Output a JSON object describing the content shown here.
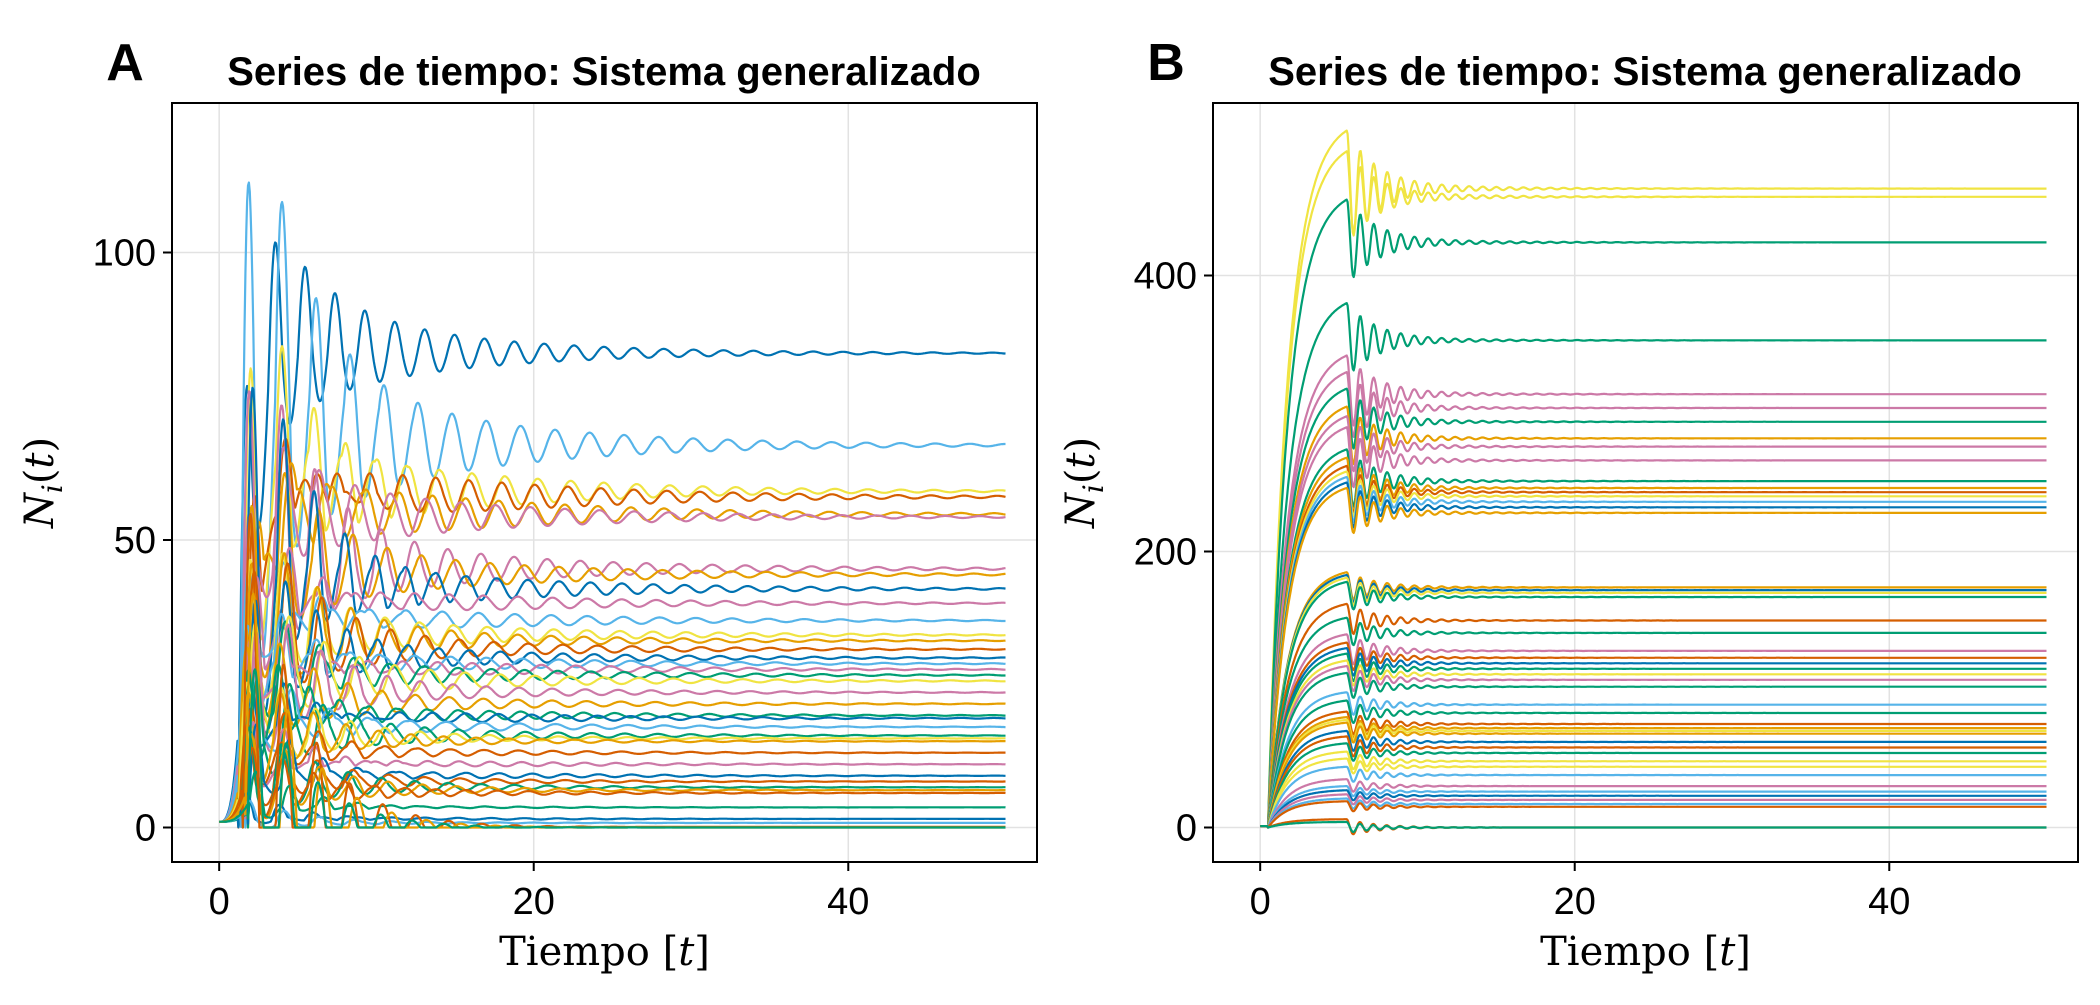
{
  "palette": [
    "#0072b2",
    "#56b4e9",
    "#e69f00",
    "#d55e00",
    "#cc79a7",
    "#009e73",
    "#f0e442"
  ],
  "chart_data": [
    {
      "type": "line",
      "panel_letter": "A",
      "title": "Series de tiempo: Sistema generalizado",
      "xlabel": "Tiempo [t]",
      "ylabel": "N_i(t)",
      "xlim": [
        -3,
        52
      ],
      "ylim": [
        -6,
        126
      ],
      "xticks": [
        0,
        20,
        40
      ],
      "yticks": [
        0,
        50,
        100
      ],
      "grid": true,
      "legend": "none",
      "x_range": [
        0,
        50
      ],
      "series_note": "many species; equilibria and first peaks estimated",
      "series": [
        {
          "color": "#0072b2",
          "equilibrium": 82.5,
          "peak": 102,
          "period": 1.9,
          "decay": 10,
          "amp": 11
        },
        {
          "color": "#56b4e9",
          "equilibrium": 66.5,
          "peak": 119,
          "period": 2.2,
          "decay": 11,
          "amp": 16
        },
        {
          "color": "#f0e442",
          "equilibrium": 58.5,
          "peak": 100,
          "period": 2.1,
          "decay": 11,
          "amp": 12
        },
        {
          "color": "#d55e00",
          "equilibrium": 57.5,
          "peak": 86,
          "period": 2.1,
          "decay": 12,
          "amp": 10
        },
        {
          "color": "#e69f00",
          "equilibrium": 54.5,
          "peak": 75,
          "period": 2.1,
          "decay": 12,
          "amp": 9
        },
        {
          "color": "#cc79a7",
          "equilibrium": 54.0,
          "peak": 70,
          "period": 2.2,
          "decay": 12,
          "amp": 8
        },
        {
          "color": "#cc79a7",
          "equilibrium": 45.0,
          "peak": 80,
          "period": 2.1,
          "decay": 13,
          "amp": 7
        },
        {
          "color": "#e69f00",
          "equilibrium": 44.0,
          "peak": 66,
          "period": 2.2,
          "decay": 13,
          "amp": 6
        },
        {
          "color": "#0072b2",
          "equilibrium": 41.5,
          "peak": 84,
          "period": 2.0,
          "decay": 12,
          "amp": 7
        },
        {
          "color": "#cc79a7",
          "equilibrium": 39.0,
          "peak": 60,
          "period": 2.2,
          "decay": 12,
          "amp": 5
        },
        {
          "color": "#56b4e9",
          "equilibrium": 36.0,
          "peak": 58,
          "period": 2.3,
          "decay": 12,
          "amp": 5
        },
        {
          "color": "#f0e442",
          "equilibrium": 33.5,
          "peak": 55,
          "period": 2.1,
          "decay": 12,
          "amp": 5
        },
        {
          "color": "#e69f00",
          "equilibrium": 32.5,
          "peak": 52,
          "period": 2.1,
          "decay": 12,
          "amp": 4
        },
        {
          "color": "#d55e00",
          "equilibrium": 31.0,
          "peak": 50,
          "period": 2.2,
          "decay": 12,
          "amp": 4
        },
        {
          "color": "#0072b2",
          "equilibrium": 29.5,
          "peak": 48,
          "period": 2.0,
          "decay": 12,
          "amp": 4
        },
        {
          "color": "#56b4e9",
          "equilibrium": 28.5,
          "peak": 46,
          "period": 2.3,
          "decay": 12,
          "amp": 4
        },
        {
          "color": "#cc79a7",
          "equilibrium": 27.5,
          "peak": 44,
          "period": 2.2,
          "decay": 12,
          "amp": 4
        },
        {
          "color": "#009e73",
          "equilibrium": 26.5,
          "peak": 42,
          "period": 2.1,
          "decay": 12,
          "amp": 4
        },
        {
          "color": "#f0e442",
          "equilibrium": 25.5,
          "peak": 40,
          "period": 2.2,
          "decay": 12,
          "amp": 4
        },
        {
          "color": "#cc79a7",
          "equilibrium": 23.5,
          "peak": 38,
          "period": 2.1,
          "decay": 12,
          "amp": 3
        },
        {
          "color": "#e69f00",
          "equilibrium": 21.5,
          "peak": 36,
          "period": 2.2,
          "decay": 12,
          "amp": 3
        },
        {
          "color": "#009e73",
          "equilibrium": 19.5,
          "peak": 34,
          "period": 2.0,
          "decay": 12,
          "amp": 3
        },
        {
          "color": "#0072b2",
          "equilibrium": 19.0,
          "peak": 32,
          "period": 2.1,
          "decay": 12,
          "amp": 3
        },
        {
          "color": "#56b4e9",
          "equilibrium": 17.5,
          "peak": 30,
          "period": 2.3,
          "decay": 11,
          "amp": 3
        },
        {
          "color": "#009e73",
          "equilibrium": 16.0,
          "peak": 28,
          "period": 2.1,
          "decay": 11,
          "amp": 3
        },
        {
          "color": "#f0e442",
          "equilibrium": 15.5,
          "peak": 27,
          "period": 2.2,
          "decay": 11,
          "amp": 2
        },
        {
          "color": "#e69f00",
          "equilibrium": 15.0,
          "peak": 26,
          "period": 2.1,
          "decay": 11,
          "amp": 2
        },
        {
          "color": "#d55e00",
          "equilibrium": 13.0,
          "peak": 24,
          "period": 2.2,
          "decay": 11,
          "amp": 2
        },
        {
          "color": "#cc79a7",
          "equilibrium": 11.0,
          "peak": 22,
          "period": 2.0,
          "decay": 11,
          "amp": 2
        },
        {
          "color": "#0072b2",
          "equilibrium": 9.0,
          "peak": 20,
          "period": 2.1,
          "decay": 11,
          "amp": 2
        },
        {
          "color": "#d55e00",
          "equilibrium": 8.0,
          "peak": 18,
          "period": 2.2,
          "decay": 10,
          "amp": 2
        },
        {
          "color": "#009e73",
          "equilibrium": 7.0,
          "peak": 16,
          "period": 2.1,
          "decay": 10,
          "amp": 2
        },
        {
          "color": "#e69f00",
          "equilibrium": 6.5,
          "peak": 15,
          "period": 2.2,
          "decay": 10,
          "amp": 2
        },
        {
          "color": "#d55e00",
          "equilibrium": 6.0,
          "peak": 14,
          "period": 2.0,
          "decay": 10,
          "amp": 2
        },
        {
          "color": "#009e73",
          "equilibrium": 3.5,
          "peak": 10,
          "period": 2.2,
          "decay": 9,
          "amp": 1
        },
        {
          "color": "#0072b2",
          "equilibrium": 1.5,
          "peak": 6,
          "period": 2.1,
          "decay": 9,
          "amp": 1
        },
        {
          "color": "#56b4e9",
          "equilibrium": 0.8,
          "peak": 4,
          "period": 2.2,
          "decay": 9,
          "amp": 0.5
        },
        {
          "color": "#d55e00",
          "equilibrium": 0.1,
          "peak": 40,
          "period": 2.1,
          "decay": 6,
          "amp": 0
        },
        {
          "color": "#e69f00",
          "equilibrium": 0.0,
          "peak": 30,
          "period": 2.2,
          "decay": 6,
          "amp": 0
        },
        {
          "color": "#009e73",
          "equilibrium": 0.0,
          "peak": 20,
          "period": 2.0,
          "decay": 6,
          "amp": 0
        }
      ]
    },
    {
      "type": "line",
      "panel_letter": "B",
      "title": "Series de tiempo: Sistema generalizado",
      "xlabel": "Tiempo [t]",
      "ylabel": "N_i(t)",
      "xlim": [
        -3,
        52
      ],
      "ylim": [
        -25,
        525
      ],
      "xticks": [
        0,
        20,
        40
      ],
      "yticks": [
        0,
        200,
        400
      ],
      "grid": true,
      "legend": "none",
      "x_range": [
        0,
        50
      ],
      "series_note": "many species; equilibria and first peaks estimated",
      "series": [
        {
          "color": "#f0e442",
          "equilibrium": 463,
          "peak": 505,
          "amp": 22
        },
        {
          "color": "#f0e442",
          "equilibrium": 457,
          "peak": 490,
          "amp": 18
        },
        {
          "color": "#009e73",
          "equilibrium": 424,
          "peak": 455,
          "amp": 16
        },
        {
          "color": "#009e73",
          "equilibrium": 353,
          "peak": 380,
          "amp": 12
        },
        {
          "color": "#cc79a7",
          "equilibrium": 314,
          "peak": 342,
          "amp": 12
        },
        {
          "color": "#cc79a7",
          "equilibrium": 304,
          "peak": 330,
          "amp": 10
        },
        {
          "color": "#009e73",
          "equilibrium": 294,
          "peak": 318,
          "amp": 10
        },
        {
          "color": "#e69f00",
          "equilibrium": 282,
          "peak": 305,
          "amp": 9
        },
        {
          "color": "#cc79a7",
          "equilibrium": 276,
          "peak": 298,
          "amp": 9
        },
        {
          "color": "#cc79a7",
          "equilibrium": 266,
          "peak": 290,
          "amp": 9
        },
        {
          "color": "#009e73",
          "equilibrium": 251,
          "peak": 274,
          "amp": 9
        },
        {
          "color": "#e69f00",
          "equilibrium": 246,
          "peak": 268,
          "amp": 8
        },
        {
          "color": "#d55e00",
          "equilibrium": 243,
          "peak": 262,
          "amp": 8
        },
        {
          "color": "#f0e442",
          "equilibrium": 240,
          "peak": 258,
          "amp": 8
        },
        {
          "color": "#56b4e9",
          "equilibrium": 236,
          "peak": 254,
          "amp": 8
        },
        {
          "color": "#0072b2",
          "equilibrium": 232,
          "peak": 250,
          "amp": 8
        },
        {
          "color": "#e69f00",
          "equilibrium": 228,
          "peak": 246,
          "amp": 8
        },
        {
          "color": "#e69f00",
          "equilibrium": 174,
          "peak": 185,
          "amp": 5
        },
        {
          "color": "#0072b2",
          "equilibrium": 172,
          "peak": 183,
          "amp": 5
        },
        {
          "color": "#f0e442",
          "equilibrium": 170,
          "peak": 181,
          "amp": 5
        },
        {
          "color": "#009e73",
          "equilibrium": 167,
          "peak": 178,
          "amp": 5
        },
        {
          "color": "#d55e00",
          "equilibrium": 150,
          "peak": 162,
          "amp": 5
        },
        {
          "color": "#009e73",
          "equilibrium": 141,
          "peak": 152,
          "amp": 4
        },
        {
          "color": "#cc79a7",
          "equilibrium": 128,
          "peak": 140,
          "amp": 4
        },
        {
          "color": "#d55e00",
          "equilibrium": 123,
          "peak": 134,
          "amp": 4
        },
        {
          "color": "#0072b2",
          "equilibrium": 119,
          "peak": 130,
          "amp": 4
        },
        {
          "color": "#009e73",
          "equilibrium": 115,
          "peak": 126,
          "amp": 4
        },
        {
          "color": "#f0e442",
          "equilibrium": 111,
          "peak": 121,
          "amp": 4
        },
        {
          "color": "#cc79a7",
          "equilibrium": 107,
          "peak": 117,
          "amp": 3
        },
        {
          "color": "#009e73",
          "equilibrium": 102,
          "peak": 112,
          "amp": 3
        },
        {
          "color": "#56b4e9",
          "equilibrium": 89,
          "peak": 98,
          "amp": 3
        },
        {
          "color": "#009e73",
          "equilibrium": 83,
          "peak": 92,
          "amp": 3
        },
        {
          "color": "#d55e00",
          "equilibrium": 75,
          "peak": 84,
          "amp": 3
        },
        {
          "color": "#e69f00",
          "equilibrium": 72,
          "peak": 80,
          "amp": 3
        },
        {
          "color": "#f0e442",
          "equilibrium": 70,
          "peak": 78,
          "amp": 3
        },
        {
          "color": "#e69f00",
          "equilibrium": 68,
          "peak": 76,
          "amp": 3
        },
        {
          "color": "#0072b2",
          "equilibrium": 62,
          "peak": 70,
          "amp": 2
        },
        {
          "color": "#d55e00",
          "equilibrium": 58,
          "peak": 66,
          "amp": 2
        },
        {
          "color": "#009e73",
          "equilibrium": 54,
          "peak": 61,
          "amp": 2
        },
        {
          "color": "#f0e442",
          "equilibrium": 48,
          "peak": 55,
          "amp": 2
        },
        {
          "color": "#f0e442",
          "equilibrium": 44,
          "peak": 50,
          "amp": 2
        },
        {
          "color": "#56b4e9",
          "equilibrium": 38,
          "peak": 44,
          "amp": 2
        },
        {
          "color": "#cc79a7",
          "equilibrium": 30,
          "peak": 35,
          "amp": 1
        },
        {
          "color": "#56b4e9",
          "equilibrium": 26,
          "peak": 30,
          "amp": 1
        },
        {
          "color": "#0072b2",
          "equilibrium": 23,
          "peak": 27,
          "amp": 1
        },
        {
          "color": "#cc79a7",
          "equilibrium": 20,
          "peak": 24,
          "amp": 1
        },
        {
          "color": "#56b4e9",
          "equilibrium": 17,
          "peak": 21,
          "amp": 1
        },
        {
          "color": "#d55e00",
          "equilibrium": 15,
          "peak": 19,
          "amp": 1
        },
        {
          "color": "#d55e00",
          "equilibrium": 0,
          "peak": 6,
          "amp": 0
        },
        {
          "color": "#009e73",
          "equilibrium": 0,
          "peak": 4,
          "amp": 0
        }
      ]
    }
  ]
}
